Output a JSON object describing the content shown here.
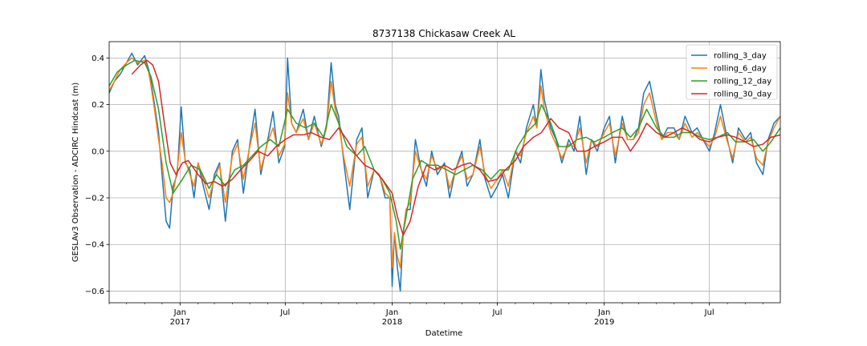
{
  "chart_data": {
    "type": "line",
    "title": "8737138 Chickasaw Creek AL",
    "xlabel": "Datetime",
    "ylabel": "GESLAv3 Observation - ADCIRC Hindcast (m)",
    "x_range": [
      "2016-09-01",
      "2019-10-31"
    ],
    "ylim": [
      -0.65,
      0.47
    ],
    "grid": true,
    "legend_position": "top-right",
    "x_ticks": [
      {
        "date": "2017-01-01",
        "label": "Jan",
        "sublabel": "2017"
      },
      {
        "date": "2017-07-01",
        "label": "Jul",
        "sublabel": ""
      },
      {
        "date": "2018-01-01",
        "label": "Jan",
        "sublabel": "2018"
      },
      {
        "date": "2018-07-01",
        "label": "Jul",
        "sublabel": ""
      },
      {
        "date": "2019-01-01",
        "label": "Jan",
        "sublabel": "2019"
      },
      {
        "date": "2019-07-01",
        "label": "Jul",
        "sublabel": ""
      }
    ],
    "y_ticks": [
      0.4,
      0.2,
      0.0,
      -0.2,
      -0.4,
      -0.6
    ],
    "y_tick_labels": [
      "0.4",
      "0.2",
      "0.0",
      "−0.2",
      "−0.4",
      "−0.6"
    ],
    "series": [
      {
        "name": "rolling_3_day",
        "color": "#1f77b4",
        "x": [
          "2016-09-01",
          "2016-09-10",
          "2016-09-20",
          "2016-10-01",
          "2016-10-10",
          "2016-10-20",
          "2016-11-01",
          "2016-11-08",
          "2016-11-12",
          "2016-11-18",
          "2016-11-25",
          "2016-12-01",
          "2016-12-08",
          "2016-12-14",
          "2016-12-20",
          "2016-12-27",
          "2017-01-03",
          "2017-01-10",
          "2017-01-18",
          "2017-01-25",
          "2017-02-01",
          "2017-02-10",
          "2017-02-20",
          "2017-03-01",
          "2017-03-10",
          "2017-03-20",
          "2017-04-01",
          "2017-04-10",
          "2017-04-20",
          "2017-05-01",
          "2017-05-10",
          "2017-05-20",
          "2017-06-01",
          "2017-06-10",
          "2017-06-20",
          "2017-06-30",
          "2017-07-05",
          "2017-07-12",
          "2017-07-20",
          "2017-08-01",
          "2017-08-10",
          "2017-08-20",
          "2017-09-01",
          "2017-09-10",
          "2017-09-18",
          "2017-09-25",
          "2017-10-01",
          "2017-10-10",
          "2017-10-20",
          "2017-11-01",
          "2017-11-10",
          "2017-11-20",
          "2017-12-01",
          "2017-12-10",
          "2017-12-20",
          "2017-12-28",
          "2018-01-01",
          "2018-01-05",
          "2018-01-10",
          "2018-01-15",
          "2018-01-20",
          "2018-01-25",
          "2018-02-01",
          "2018-02-10",
          "2018-02-20",
          "2018-03-01",
          "2018-03-10",
          "2018-03-20",
          "2018-04-01",
          "2018-04-10",
          "2018-04-20",
          "2018-05-01",
          "2018-05-10",
          "2018-05-20",
          "2018-06-01",
          "2018-06-10",
          "2018-06-20",
          "2018-07-01",
          "2018-07-10",
          "2018-07-20",
          "2018-08-01",
          "2018-08-10",
          "2018-08-20",
          "2018-09-01",
          "2018-09-07",
          "2018-09-14",
          "2018-09-20",
          "2018-10-01",
          "2018-10-10",
          "2018-10-20",
          "2018-11-01",
          "2018-11-10",
          "2018-11-20",
          "2018-12-01",
          "2018-12-10",
          "2018-12-20",
          "2019-01-01",
          "2019-01-10",
          "2019-01-20",
          "2019-02-01",
          "2019-02-10",
          "2019-02-20",
          "2019-03-01",
          "2019-03-10",
          "2019-03-20",
          "2019-04-01",
          "2019-04-10",
          "2019-04-20",
          "2019-05-01",
          "2019-05-10",
          "2019-05-20",
          "2019-06-01",
          "2019-06-10",
          "2019-06-20",
          "2019-07-01",
          "2019-07-10",
          "2019-07-20",
          "2019-08-01",
          "2019-08-10",
          "2019-08-20",
          "2019-09-01",
          "2019-09-10",
          "2019-09-20",
          "2019-10-01",
          "2019-10-10",
          "2019-10-20",
          "2019-10-31"
        ],
        "y": [
          0.25,
          0.3,
          0.33,
          0.38,
          0.42,
          0.37,
          0.41,
          0.35,
          0.3,
          0.2,
          0.08,
          -0.1,
          -0.3,
          -0.33,
          -0.15,
          -0.1,
          0.19,
          -0.05,
          -0.08,
          -0.2,
          -0.05,
          -0.15,
          -0.25,
          -0.1,
          -0.05,
          -0.3,
          0.0,
          0.05,
          -0.18,
          0.03,
          0.18,
          -0.1,
          0.05,
          0.17,
          -0.05,
          0.02,
          0.4,
          0.12,
          0.08,
          0.18,
          0.05,
          0.15,
          0.02,
          0.1,
          0.38,
          0.2,
          0.15,
          -0.05,
          -0.25,
          0.05,
          0.1,
          -0.2,
          -0.08,
          -0.1,
          -0.2,
          -0.2,
          -0.58,
          -0.35,
          -0.5,
          -0.6,
          -0.35,
          -0.25,
          -0.25,
          0.05,
          -0.08,
          -0.15,
          0.0,
          -0.1,
          -0.05,
          -0.2,
          -0.08,
          0.0,
          -0.15,
          -0.1,
          0.05,
          -0.12,
          -0.2,
          -0.15,
          -0.1,
          -0.2,
          0.0,
          -0.05,
          0.1,
          0.2,
          0.1,
          0.35,
          0.22,
          0.1,
          0.05,
          -0.05,
          0.05,
          0.0,
          0.15,
          -0.1,
          0.05,
          0.0,
          0.1,
          0.15,
          -0.05,
          0.15,
          0.05,
          0.05,
          0.1,
          0.25,
          0.3,
          0.15,
          0.05,
          0.1,
          0.1,
          0.05,
          0.15,
          0.08,
          0.1,
          0.05,
          0.0,
          0.08,
          0.2,
          0.05,
          -0.05,
          0.1,
          0.05,
          0.08,
          -0.05,
          -0.1,
          0.05,
          0.12,
          0.15
        ]
      },
      {
        "name": "rolling_6_day",
        "color": "#ff7f0e",
        "x": [
          "2016-09-01",
          "2016-09-10",
          "2016-09-20",
          "2016-10-01",
          "2016-10-10",
          "2016-10-20",
          "2016-11-01",
          "2016-11-08",
          "2016-11-12",
          "2016-11-18",
          "2016-11-25",
          "2016-12-01",
          "2016-12-08",
          "2016-12-14",
          "2016-12-20",
          "2016-12-27",
          "2017-01-03",
          "2017-01-10",
          "2017-01-18",
          "2017-01-25",
          "2017-02-01",
          "2017-02-10",
          "2017-02-20",
          "2017-03-01",
          "2017-03-10",
          "2017-03-20",
          "2017-04-01",
          "2017-04-10",
          "2017-04-20",
          "2017-05-01",
          "2017-05-10",
          "2017-05-20",
          "2017-06-01",
          "2017-06-10",
          "2017-06-20",
          "2017-06-30",
          "2017-07-05",
          "2017-07-12",
          "2017-07-20",
          "2017-08-01",
          "2017-08-10",
          "2017-08-20",
          "2017-09-01",
          "2017-09-10",
          "2017-09-18",
          "2017-09-25",
          "2017-10-01",
          "2017-10-10",
          "2017-10-20",
          "2017-11-01",
          "2017-11-10",
          "2017-11-20",
          "2017-12-01",
          "2017-12-10",
          "2017-12-20",
          "2017-12-28",
          "2018-01-01",
          "2018-01-05",
          "2018-01-10",
          "2018-01-15",
          "2018-01-20",
          "2018-01-25",
          "2018-02-01",
          "2018-02-10",
          "2018-02-20",
          "2018-03-01",
          "2018-03-10",
          "2018-03-20",
          "2018-04-01",
          "2018-04-10",
          "2018-04-20",
          "2018-05-01",
          "2018-05-10",
          "2018-05-20",
          "2018-06-01",
          "2018-06-10",
          "2018-06-20",
          "2018-07-01",
          "2018-07-10",
          "2018-07-20",
          "2018-08-01",
          "2018-08-10",
          "2018-08-20",
          "2018-09-01",
          "2018-09-07",
          "2018-09-14",
          "2018-09-20",
          "2018-10-01",
          "2018-10-10",
          "2018-10-20",
          "2018-11-01",
          "2018-11-10",
          "2018-11-20",
          "2018-12-01",
          "2018-12-10",
          "2018-12-20",
          "2019-01-01",
          "2019-01-10",
          "2019-01-20",
          "2019-02-01",
          "2019-02-10",
          "2019-02-20",
          "2019-03-01",
          "2019-03-10",
          "2019-03-20",
          "2019-04-01",
          "2019-04-10",
          "2019-04-20",
          "2019-05-01",
          "2019-05-10",
          "2019-05-20",
          "2019-06-01",
          "2019-06-10",
          "2019-06-20",
          "2019-07-01",
          "2019-07-10",
          "2019-07-20",
          "2019-08-01",
          "2019-08-10",
          "2019-08-20",
          "2019-09-01",
          "2019-09-10",
          "2019-09-20",
          "2019-10-01",
          "2019-10-10",
          "2019-10-20",
          "2019-10-31"
        ],
        "y": [
          0.26,
          0.3,
          0.35,
          0.38,
          0.4,
          0.38,
          0.39,
          0.34,
          0.28,
          0.18,
          0.05,
          -0.05,
          -0.2,
          -0.22,
          -0.18,
          -0.08,
          0.08,
          -0.04,
          -0.1,
          -0.15,
          -0.05,
          -0.12,
          -0.2,
          -0.12,
          -0.06,
          -0.22,
          -0.02,
          0.03,
          -0.12,
          0.02,
          0.12,
          -0.08,
          0.04,
          0.1,
          -0.02,
          0.03,
          0.25,
          0.12,
          0.08,
          0.14,
          0.05,
          0.12,
          0.03,
          0.1,
          0.3,
          0.18,
          0.12,
          -0.03,
          -0.15,
          0.03,
          0.06,
          -0.15,
          -0.08,
          -0.1,
          -0.18,
          -0.2,
          -0.5,
          -0.35,
          -0.45,
          -0.5,
          -0.35,
          -0.25,
          -0.22,
          0.0,
          -0.08,
          -0.12,
          -0.02,
          -0.08,
          -0.06,
          -0.16,
          -0.08,
          -0.02,
          -0.12,
          -0.1,
          0.02,
          -0.1,
          -0.16,
          -0.12,
          -0.08,
          -0.15,
          0.0,
          -0.02,
          0.08,
          0.15,
          0.1,
          0.28,
          0.18,
          0.08,
          0.03,
          -0.03,
          0.03,
          0.02,
          0.1,
          -0.05,
          0.05,
          0.02,
          0.08,
          0.12,
          -0.02,
          0.12,
          0.05,
          0.05,
          0.08,
          0.2,
          0.25,
          0.12,
          0.05,
          0.08,
          0.08,
          0.05,
          0.12,
          0.06,
          0.08,
          0.05,
          0.02,
          0.06,
          0.15,
          0.04,
          -0.03,
          0.08,
          0.04,
          0.06,
          -0.03,
          -0.06,
          0.04,
          0.1,
          0.15
        ]
      },
      {
        "name": "rolling_12_day",
        "color": "#2ca02c",
        "x": [
          "2016-09-01",
          "2016-09-15",
          "2016-10-01",
          "2016-10-15",
          "2016-11-01",
          "2016-11-12",
          "2016-11-25",
          "2016-12-08",
          "2016-12-20",
          "2017-01-05",
          "2017-01-20",
          "2017-02-05",
          "2017-02-20",
          "2017-03-05",
          "2017-03-20",
          "2017-04-05",
          "2017-04-20",
          "2017-05-05",
          "2017-05-20",
          "2017-06-05",
          "2017-06-20",
          "2017-07-05",
          "2017-07-20",
          "2017-08-05",
          "2017-08-20",
          "2017-09-05",
          "2017-09-18",
          "2017-10-01",
          "2017-10-15",
          "2017-11-01",
          "2017-11-15",
          "2017-12-01",
          "2017-12-15",
          "2017-12-28",
          "2018-01-08",
          "2018-01-15",
          "2018-01-25",
          "2018-02-05",
          "2018-02-20",
          "2018-03-05",
          "2018-03-20",
          "2018-04-05",
          "2018-04-20",
          "2018-05-05",
          "2018-05-20",
          "2018-06-05",
          "2018-06-20",
          "2018-07-05",
          "2018-07-20",
          "2018-08-05",
          "2018-08-20",
          "2018-09-05",
          "2018-09-15",
          "2018-10-01",
          "2018-10-15",
          "2018-11-01",
          "2018-11-15",
          "2018-12-01",
          "2018-12-15",
          "2019-01-01",
          "2019-01-15",
          "2019-02-01",
          "2019-02-15",
          "2019-03-01",
          "2019-03-15",
          "2019-04-01",
          "2019-04-15",
          "2019-05-01",
          "2019-05-15",
          "2019-06-01",
          "2019-06-15",
          "2019-07-01",
          "2019-07-15",
          "2019-08-01",
          "2019-08-15",
          "2019-09-01",
          "2019-09-15",
          "2019-10-01",
          "2019-10-15",
          "2019-10-31"
        ],
        "y": [
          0.28,
          0.34,
          0.37,
          0.39,
          0.38,
          0.32,
          0.18,
          -0.05,
          -0.18,
          -0.12,
          -0.06,
          -0.08,
          -0.16,
          -0.1,
          -0.15,
          -0.08,
          -0.06,
          -0.02,
          0.02,
          0.05,
          0.02,
          0.18,
          0.12,
          0.1,
          0.12,
          0.06,
          0.2,
          0.12,
          0.02,
          -0.02,
          0.02,
          -0.08,
          -0.12,
          -0.18,
          -0.3,
          -0.42,
          -0.28,
          -0.12,
          -0.04,
          -0.06,
          -0.06,
          -0.08,
          -0.1,
          -0.08,
          -0.06,
          -0.08,
          -0.12,
          -0.08,
          -0.08,
          0.02,
          0.08,
          0.12,
          0.2,
          0.12,
          0.02,
          0.02,
          0.05,
          0.06,
          0.04,
          0.06,
          0.08,
          0.1,
          0.06,
          0.1,
          0.18,
          0.1,
          0.06,
          0.06,
          0.08,
          0.08,
          0.06,
          0.05,
          0.06,
          0.08,
          0.04,
          0.04,
          0.05,
          0.0,
          0.04,
          0.1
        ]
      },
      {
        "name": "rolling_30_day",
        "color": "#d62728",
        "x": [
          "2016-10-10",
          "2016-10-25",
          "2016-11-05",
          "2016-11-15",
          "2016-11-25",
          "2016-12-05",
          "2016-12-15",
          "2016-12-25",
          "2017-01-05",
          "2017-01-15",
          "2017-02-01",
          "2017-02-15",
          "2017-03-01",
          "2017-03-15",
          "2017-04-01",
          "2017-04-15",
          "2017-05-01",
          "2017-05-15",
          "2017-06-01",
          "2017-06-15",
          "2017-07-01",
          "2017-07-15",
          "2017-08-01",
          "2017-08-15",
          "2017-09-01",
          "2017-09-15",
          "2017-10-01",
          "2017-10-15",
          "2017-11-01",
          "2017-11-15",
          "2017-12-01",
          "2017-12-15",
          "2018-01-01",
          "2018-01-10",
          "2018-01-20",
          "2018-02-01",
          "2018-02-15",
          "2018-03-01",
          "2018-03-15",
          "2018-04-01",
          "2018-04-15",
          "2018-05-01",
          "2018-05-15",
          "2018-06-01",
          "2018-06-15",
          "2018-07-01",
          "2018-07-15",
          "2018-08-01",
          "2018-08-15",
          "2018-09-01",
          "2018-09-15",
          "2018-10-01",
          "2018-10-15",
          "2018-11-01",
          "2018-11-15",
          "2018-12-01",
          "2018-12-15",
          "2019-01-01",
          "2019-01-15",
          "2019-02-01",
          "2019-02-15",
          "2019-03-01",
          "2019-03-15",
          "2019-04-01",
          "2019-04-15",
          "2019-05-01",
          "2019-05-15",
          "2019-06-01",
          "2019-06-15",
          "2019-07-01",
          "2019-07-15",
          "2019-08-01",
          "2019-08-15",
          "2019-09-01",
          "2019-09-15",
          "2019-10-01",
          "2019-10-15",
          "2019-10-31"
        ],
        "y": [
          0.33,
          0.37,
          0.39,
          0.37,
          0.3,
          0.12,
          -0.05,
          -0.1,
          -0.05,
          -0.04,
          -0.1,
          -0.14,
          -0.13,
          -0.15,
          -0.12,
          -0.08,
          -0.04,
          0.0,
          -0.02,
          0.02,
          0.05,
          0.07,
          0.07,
          0.08,
          0.06,
          0.05,
          0.1,
          0.05,
          -0.02,
          -0.06,
          -0.08,
          -0.12,
          -0.18,
          -0.28,
          -0.36,
          -0.3,
          -0.15,
          -0.06,
          -0.08,
          -0.06,
          -0.08,
          -0.06,
          -0.05,
          -0.08,
          -0.13,
          -0.12,
          -0.08,
          -0.04,
          0.02,
          0.06,
          0.08,
          0.14,
          0.1,
          0.08,
          0.0,
          0.0,
          0.02,
          0.04,
          0.06,
          0.06,
          0.0,
          0.05,
          0.12,
          0.08,
          0.06,
          0.08,
          0.1,
          0.08,
          0.05,
          0.04,
          0.06,
          0.07,
          0.06,
          0.04,
          0.02,
          0.03,
          0.06,
          0.07
        ]
      }
    ]
  }
}
